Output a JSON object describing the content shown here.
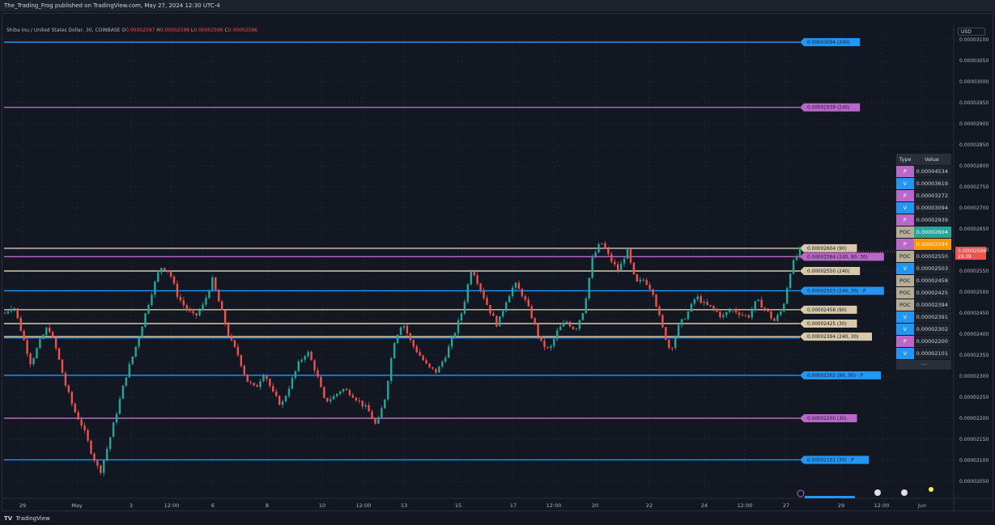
{
  "header": {
    "publish_text": "The_Trading_Frog published on TradingView.com, May 27, 2024 12:30 UTC-4"
  },
  "legend": {
    "symbol": "Shiba Inu / United States Dollar, 30, COINBASE",
    "open_label": "O",
    "open": "0.00002597",
    "high_label": "H",
    "high": "0.00002598",
    "low_label": "L",
    "low": "0.00002596",
    "close_label": "C",
    "close": "0.00002596"
  },
  "currency_button": "USD",
  "footer": {
    "logo": "TV",
    "brand": "TradingView"
  },
  "colors": {
    "background": "#131722",
    "blue": "#2196f3",
    "purple": "#ba68c8",
    "beige": "#d7c9a9",
    "teal": "#26a69a",
    "red": "#ef5350",
    "orange": "#ff9800",
    "poc_cell": "#b5ad95"
  },
  "table": {
    "header_type": "Type",
    "header_value": "Value",
    "rows": [
      {
        "type": "P",
        "value": "0.00004534"
      },
      {
        "type": "V",
        "value": "0.00003619"
      },
      {
        "type": "P",
        "value": "0.00003272"
      },
      {
        "type": "V",
        "value": "0.00003094"
      },
      {
        "type": "P",
        "value": "0.00002939"
      },
      {
        "type": "POC",
        "value": "0.00002604"
      },
      {
        "type": "P",
        "value": "0.00002584"
      },
      {
        "type": "POC",
        "value": "0.00002550"
      },
      {
        "type": "V",
        "value": "0.00002503"
      },
      {
        "type": "POC",
        "value": "0.00002458"
      },
      {
        "type": "POC",
        "value": "0.00002425"
      },
      {
        "type": "POC",
        "value": "0.00002394"
      },
      {
        "type": "V",
        "value": "0.00002391"
      },
      {
        "type": "V",
        "value": "0.00002302"
      },
      {
        "type": "P",
        "value": "0.00002200"
      },
      {
        "type": "V",
        "value": "0.00002101"
      }
    ],
    "more": "..."
  },
  "chart_data": {
    "type": "candlestick",
    "symbol": "SHIBUSD",
    "interval": "30",
    "ylim": [
      2.03e-05,
      3.11e-05
    ],
    "y_ticks": [
      "0.00003100",
      "0.00003050",
      "0.00003000",
      "0.00002950",
      "0.00002900",
      "0.00002850",
      "0.00002800",
      "0.00002750",
      "0.00002700",
      "0.00002650",
      "0.00002600",
      "0.00002550",
      "0.00002500",
      "0.00002450",
      "0.00002400",
      "0.00002350",
      "0.00002300",
      "0.00002250",
      "0.00002200",
      "0.00002150",
      "0.00002100",
      "0.00002050"
    ],
    "x_ticks": [
      "29",
      "May",
      "3",
      "12:00",
      "6",
      "8",
      "10",
      "12:00",
      "13",
      "15",
      "17",
      "12:00",
      "20",
      "22",
      "24",
      "12:00",
      "27",
      "29",
      "12:00",
      "Jun"
    ],
    "current_price": {
      "value": 2.596e-05,
      "label": "0.00002596",
      "countdown": "29:39"
    },
    "levels": [
      {
        "value": 3.094e-05,
        "label": "0.00003094 (240)",
        "kind": "V"
      },
      {
        "value": 2.939e-05,
        "label": "0.00002939 (240)",
        "kind": "P"
      },
      {
        "value": 2.604e-05,
        "label": "0.00002604 (90)",
        "kind": "POC"
      },
      {
        "value": 2.584e-05,
        "label": "0.00002584 (240, 90, 30)",
        "kind": "P"
      },
      {
        "value": 2.55e-05,
        "label": "0.00002550 (240)",
        "kind": "POC"
      },
      {
        "value": 2.503e-05,
        "label": "0.00002503 (240, 30) · P",
        "kind": "V"
      },
      {
        "value": 2.458e-05,
        "label": "0.00002458 (90)",
        "kind": "POC"
      },
      {
        "value": 2.425e-05,
        "label": "0.00002425 (30)",
        "kind": "POC"
      },
      {
        "value": 2.394e-05,
        "label": "0.00002394 (240, 30)",
        "kind": "POC"
      },
      {
        "value": 2.391e-05,
        "label": "",
        "kind": "V"
      },
      {
        "value": 2.302e-05,
        "label": "0.00002302 (90, 30) · P",
        "kind": "V"
      },
      {
        "value": 2.2e-05,
        "label": "0.00002200 (30)",
        "kind": "P"
      },
      {
        "value": 2.101e-05,
        "label": "0.00002101 (30) · P",
        "kind": "V"
      }
    ],
    "price_path": [
      2.45e-05,
      2.47e-05,
      2.4e-05,
      2.33e-05,
      2.38e-05,
      2.42e-05,
      2.36e-05,
      2.28e-05,
      2.22e-05,
      2.18e-05,
      2.12e-05,
      2.07e-05,
      2.14e-05,
      2.22e-05,
      2.3e-05,
      2.36e-05,
      2.43e-05,
      2.5e-05,
      2.56e-05,
      2.55e-05,
      2.49e-05,
      2.46e-05,
      2.44e-05,
      2.47e-05,
      2.53e-05,
      2.46e-05,
      2.39e-05,
      2.35e-05,
      2.29e-05,
      2.27e-05,
      2.31e-05,
      2.26e-05,
      2.23e-05,
      2.28e-05,
      2.33e-05,
      2.36e-05,
      2.31e-05,
      2.24e-05,
      2.25e-05,
      2.27e-05,
      2.26e-05,
      2.24e-05,
      2.22e-05,
      2.18e-05,
      2.25e-05,
      2.38e-05,
      2.43e-05,
      2.38e-05,
      2.35e-05,
      2.32e-05,
      2.31e-05,
      2.35e-05,
      2.4e-05,
      2.46e-05,
      2.56e-05,
      2.51e-05,
      2.46e-05,
      2.42e-05,
      2.48e-05,
      2.52e-05,
      2.49e-05,
      2.44e-05,
      2.38e-05,
      2.36e-05,
      2.41e-05,
      2.43e-05,
      2.41e-05,
      2.46e-05,
      2.58e-05,
      2.62e-05,
      2.58e-05,
      2.55e-05,
      2.6e-05,
      2.52e-05,
      2.53e-05,
      2.5e-05,
      2.42e-05,
      2.36e-05,
      2.42e-05,
      2.45e-05,
      2.49e-05,
      2.47e-05,
      2.46e-05,
      2.44e-05,
      2.46e-05,
      2.45e-05,
      2.44e-05,
      2.48e-05,
      2.46e-05,
      2.43e-05,
      2.46e-05,
      2.56e-05,
      2.6e-05
    ]
  }
}
